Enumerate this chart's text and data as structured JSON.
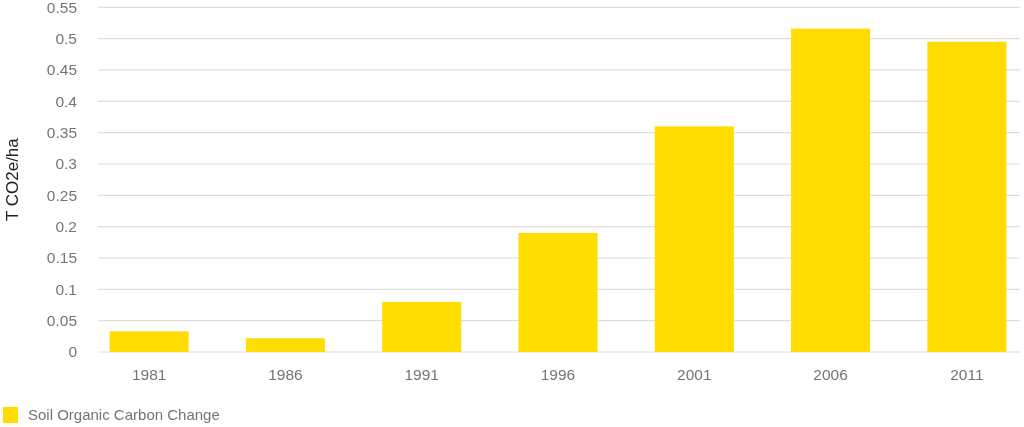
{
  "chart_data": {
    "type": "bar",
    "ylabel": "T CO2e/ha",
    "categories": [
      "1981",
      "1986",
      "1991",
      "1996",
      "2001",
      "2006",
      "2011"
    ],
    "series": [
      {
        "name": "Soil Organic Carbon Change",
        "color": "#ffdd00",
        "values": [
          0.033,
          0.022,
          0.08,
          0.19,
          0.36,
          0.516,
          0.495
        ]
      }
    ],
    "ylim": [
      0,
      0.55
    ],
    "yticks": [
      0,
      0.05,
      0.1,
      0.15,
      0.2,
      0.25,
      0.3,
      0.35,
      0.4,
      0.45,
      0.5,
      0.55
    ],
    "grid": "y",
    "legend": "bottom left"
  }
}
